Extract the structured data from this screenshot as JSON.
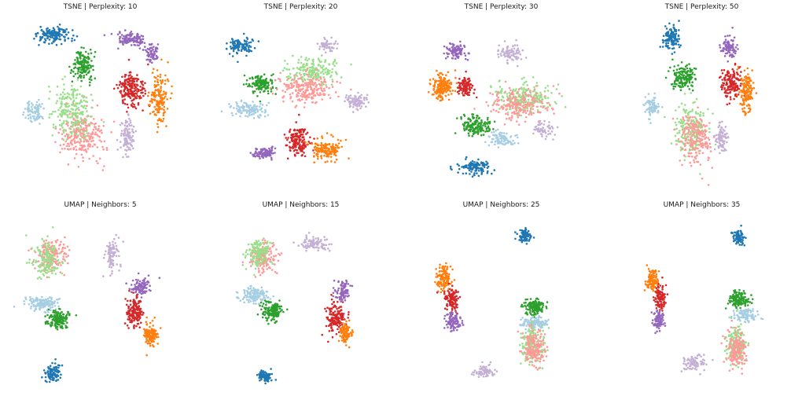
{
  "chart_data": [
    {
      "type": "scatter",
      "title": "TSNE | Perplexity: 10",
      "clusters": [
        {
          "color": "#1f77b4",
          "x": -2.4,
          "y": 3.5,
          "sx": 0.9,
          "sy": 0.45,
          "n": 150
        },
        {
          "color": "#9467bd",
          "x": 1.6,
          "y": 3.3,
          "sx": 0.7,
          "sy": 0.3,
          "n": 120
        },
        {
          "color": "#9467bd",
          "x": 2.6,
          "y": 2.6,
          "sx": 0.35,
          "sy": 0.45,
          "n": 70
        },
        {
          "color": "#d62728",
          "x": 1.6,
          "y": 0.8,
          "sx": 0.7,
          "sy": 0.9,
          "n": 200
        },
        {
          "color": "#ff7f0e",
          "x": 3.0,
          "y": 0.4,
          "sx": 0.45,
          "sy": 1.2,
          "n": 160
        },
        {
          "color": "#2ca02c",
          "x": -0.9,
          "y": 2.0,
          "sx": 0.5,
          "sy": 0.8,
          "n": 150
        },
        {
          "color": "#a6cee3",
          "x": -3.4,
          "y": -0.3,
          "sx": 0.45,
          "sy": 0.55,
          "n": 90
        },
        {
          "color": "#ff9896",
          "x": -1.0,
          "y": -1.4,
          "sx": 1.1,
          "sy": 1.3,
          "n": 260
        },
        {
          "color": "#98df8a",
          "x": -1.5,
          "y": -0.2,
          "sx": 1.0,
          "sy": 1.4,
          "n": 220
        },
        {
          "color": "#c5b0d5",
          "x": 1.4,
          "y": -1.6,
          "sx": 0.35,
          "sy": 1.1,
          "n": 110
        }
      ]
    },
    {
      "type": "scatter",
      "title": "TSNE | Perplexity: 20",
      "clusters": [
        {
          "color": "#1f77b4",
          "x": -3.2,
          "y": 3.0,
          "sx": 0.7,
          "sy": 0.4,
          "n": 110
        },
        {
          "color": "#2ca02c",
          "x": -2.0,
          "y": 1.1,
          "sx": 0.7,
          "sy": 0.45,
          "n": 140
        },
        {
          "color": "#a6cee3",
          "x": -2.8,
          "y": -0.2,
          "sx": 0.9,
          "sy": 0.35,
          "n": 110
        },
        {
          "color": "#98df8a",
          "x": 0.6,
          "y": 1.7,
          "sx": 1.2,
          "sy": 0.7,
          "n": 200
        },
        {
          "color": "#ff9896",
          "x": 0.3,
          "y": 0.8,
          "sx": 1.5,
          "sy": 0.7,
          "n": 220
        },
        {
          "color": "#c5b0d5",
          "x": 2.9,
          "y": 0.2,
          "sx": 0.6,
          "sy": 0.35,
          "n": 90
        },
        {
          "color": "#c5b0d5",
          "x": 1.4,
          "y": 3.0,
          "sx": 0.5,
          "sy": 0.3,
          "n": 50
        },
        {
          "color": "#d62728",
          "x": -0.2,
          "y": -1.8,
          "sx": 0.6,
          "sy": 0.7,
          "n": 170
        },
        {
          "color": "#9467bd",
          "x": -1.9,
          "y": -2.4,
          "sx": 0.6,
          "sy": 0.25,
          "n": 100
        },
        {
          "color": "#ff7f0e",
          "x": 1.3,
          "y": -2.2,
          "sx": 0.7,
          "sy": 0.5,
          "n": 150
        }
      ]
    },
    {
      "type": "scatter",
      "title": "TSNE | Perplexity: 30",
      "clusters": [
        {
          "color": "#9467bd",
          "x": -2.4,
          "y": 2.7,
          "sx": 0.5,
          "sy": 0.45,
          "n": 90
        },
        {
          "color": "#ff7f0e",
          "x": -3.1,
          "y": 0.9,
          "sx": 0.6,
          "sy": 0.6,
          "n": 160
        },
        {
          "color": "#d62728",
          "x": -1.9,
          "y": 0.9,
          "sx": 0.35,
          "sy": 0.55,
          "n": 90
        },
        {
          "color": "#c5b0d5",
          "x": 0.5,
          "y": 2.6,
          "sx": 0.6,
          "sy": 0.45,
          "n": 80
        },
        {
          "color": "#98df8a",
          "x": 1.2,
          "y": 0.4,
          "sx": 1.5,
          "sy": 0.8,
          "n": 220
        },
        {
          "color": "#ff9896",
          "x": 0.9,
          "y": 0.0,
          "sx": 1.5,
          "sy": 0.8,
          "n": 200
        },
        {
          "color": "#2ca02c",
          "x": -1.3,
          "y": -1.0,
          "sx": 0.8,
          "sy": 0.5,
          "n": 150
        },
        {
          "color": "#a6cee3",
          "x": 0.0,
          "y": -1.7,
          "sx": 0.7,
          "sy": 0.4,
          "n": 90
        },
        {
          "color": "#1f77b4",
          "x": -1.4,
          "y": -3.1,
          "sx": 0.8,
          "sy": 0.4,
          "n": 120
        },
        {
          "color": "#c5b0d5",
          "x": 2.2,
          "y": -1.2,
          "sx": 0.6,
          "sy": 0.4,
          "n": 60
        }
      ]
    },
    {
      "type": "scatter",
      "title": "TSNE | Perplexity: 50",
      "clusters": [
        {
          "color": "#1f77b4",
          "x": -1.6,
          "y": 3.4,
          "sx": 0.5,
          "sy": 0.6,
          "n": 120
        },
        {
          "color": "#2ca02c",
          "x": -1.0,
          "y": 1.4,
          "sx": 0.6,
          "sy": 0.6,
          "n": 150
        },
        {
          "color": "#a6cee3",
          "x": -2.6,
          "y": 0.0,
          "sx": 0.4,
          "sy": 0.5,
          "n": 80
        },
        {
          "color": "#9467bd",
          "x": 1.4,
          "y": 2.9,
          "sx": 0.45,
          "sy": 0.55,
          "n": 100
        },
        {
          "color": "#d62728",
          "x": 1.5,
          "y": 1.1,
          "sx": 0.5,
          "sy": 0.7,
          "n": 160
        },
        {
          "color": "#ff7f0e",
          "x": 2.3,
          "y": 0.6,
          "sx": 0.35,
          "sy": 1.1,
          "n": 140
        },
        {
          "color": "#98df8a",
          "x": -0.6,
          "y": -1.2,
          "sx": 0.9,
          "sy": 1.3,
          "n": 200
        },
        {
          "color": "#ff9896",
          "x": -0.3,
          "y": -1.6,
          "sx": 0.9,
          "sy": 1.3,
          "n": 200
        },
        {
          "color": "#c5b0d5",
          "x": 1.0,
          "y": -1.6,
          "sx": 0.3,
          "sy": 0.8,
          "n": 80
        }
      ]
    },
    {
      "type": "scatter",
      "title": "UMAP | Neighbors: 5",
      "clusters": [
        {
          "color": "#ff9896",
          "x": -2.6,
          "y": 2.4,
          "sx": 0.8,
          "sy": 0.8,
          "n": 160
        },
        {
          "color": "#98df8a",
          "x": -2.8,
          "y": 2.2,
          "sx": 0.7,
          "sy": 0.9,
          "n": 150
        },
        {
          "color": "#a6cee3",
          "x": -3.0,
          "y": 0.0,
          "sx": 0.9,
          "sy": 0.35,
          "n": 130
        },
        {
          "color": "#2ca02c",
          "x": -2.2,
          "y": -0.8,
          "sx": 0.6,
          "sy": 0.5,
          "n": 150
        },
        {
          "color": "#c5b0d5",
          "x": 0.6,
          "y": 2.4,
          "sx": 0.35,
          "sy": 0.8,
          "n": 90
        },
        {
          "color": "#9467bd",
          "x": 2.0,
          "y": 0.8,
          "sx": 0.55,
          "sy": 0.45,
          "n": 100
        },
        {
          "color": "#d62728",
          "x": 1.7,
          "y": -0.4,
          "sx": 0.45,
          "sy": 0.7,
          "n": 150
        },
        {
          "color": "#ff7f0e",
          "x": 2.6,
          "y": -1.6,
          "sx": 0.35,
          "sy": 0.6,
          "n": 110
        },
        {
          "color": "#1f77b4",
          "x": -2.5,
          "y": -3.5,
          "sx": 0.4,
          "sy": 0.45,
          "n": 100
        }
      ]
    },
    {
      "type": "scatter",
      "title": "UMAP | Neighbors: 15",
      "clusters": [
        {
          "color": "#ff9896",
          "x": -2.0,
          "y": 2.3,
          "sx": 0.7,
          "sy": 0.7,
          "n": 150
        },
        {
          "color": "#98df8a",
          "x": -2.2,
          "y": 2.5,
          "sx": 0.6,
          "sy": 0.7,
          "n": 140
        },
        {
          "color": "#a6cee3",
          "x": -2.4,
          "y": 0.4,
          "sx": 0.7,
          "sy": 0.4,
          "n": 130
        },
        {
          "color": "#2ca02c",
          "x": -1.5,
          "y": -0.4,
          "sx": 0.5,
          "sy": 0.5,
          "n": 150
        },
        {
          "color": "#c5b0d5",
          "x": 0.6,
          "y": 3.0,
          "sx": 0.7,
          "sy": 0.35,
          "n": 90
        },
        {
          "color": "#9467bd",
          "x": 2.1,
          "y": 0.6,
          "sx": 0.4,
          "sy": 0.5,
          "n": 90
        },
        {
          "color": "#d62728",
          "x": 1.8,
          "y": -0.7,
          "sx": 0.5,
          "sy": 0.7,
          "n": 150
        },
        {
          "color": "#ff7f0e",
          "x": 2.3,
          "y": -1.5,
          "sx": 0.3,
          "sy": 0.5,
          "n": 90
        },
        {
          "color": "#1f77b4",
          "x": -1.9,
          "y": -3.7,
          "sx": 0.4,
          "sy": 0.3,
          "n": 90
        }
      ]
    },
    {
      "type": "scatter",
      "title": "UMAP | Neighbors: 25",
      "clusters": [
        {
          "color": "#1f77b4",
          "x": 1.2,
          "y": 3.4,
          "sx": 0.35,
          "sy": 0.3,
          "n": 80
        },
        {
          "color": "#ff7f0e",
          "x": -3.0,
          "y": 1.3,
          "sx": 0.4,
          "sy": 0.6,
          "n": 130
        },
        {
          "color": "#d62728",
          "x": -2.6,
          "y": 0.2,
          "sx": 0.35,
          "sy": 0.6,
          "n": 110
        },
        {
          "color": "#9467bd",
          "x": -2.5,
          "y": -0.9,
          "sx": 0.4,
          "sy": 0.5,
          "n": 100
        },
        {
          "color": "#2ca02c",
          "x": 1.7,
          "y": -0.2,
          "sx": 0.5,
          "sy": 0.35,
          "n": 140
        },
        {
          "color": "#a6cee3",
          "x": 1.7,
          "y": -1.0,
          "sx": 0.7,
          "sy": 0.3,
          "n": 120
        },
        {
          "color": "#98df8a",
          "x": 1.6,
          "y": -2.1,
          "sx": 0.6,
          "sy": 0.9,
          "n": 160
        },
        {
          "color": "#ff9896",
          "x": 1.7,
          "y": -2.3,
          "sx": 0.6,
          "sy": 0.9,
          "n": 160
        },
        {
          "color": "#c5b0d5",
          "x": -0.9,
          "y": -3.4,
          "sx": 0.6,
          "sy": 0.3,
          "n": 80
        }
      ]
    },
    {
      "type": "scatter",
      "title": "UMAP | Neighbors: 35",
      "clusters": [
        {
          "color": "#1f77b4",
          "x": 1.9,
          "y": 3.3,
          "sx": 0.3,
          "sy": 0.35,
          "n": 80
        },
        {
          "color": "#ff7f0e",
          "x": -2.6,
          "y": 1.2,
          "sx": 0.3,
          "sy": 0.6,
          "n": 110
        },
        {
          "color": "#d62728",
          "x": -2.2,
          "y": 0.3,
          "sx": 0.3,
          "sy": 0.6,
          "n": 100
        },
        {
          "color": "#9467bd",
          "x": -2.3,
          "y": -0.8,
          "sx": 0.3,
          "sy": 0.5,
          "n": 90
        },
        {
          "color": "#2ca02c",
          "x": 1.9,
          "y": 0.2,
          "sx": 0.55,
          "sy": 0.4,
          "n": 140
        },
        {
          "color": "#a6cee3",
          "x": 2.2,
          "y": -0.6,
          "sx": 0.7,
          "sy": 0.3,
          "n": 110
        },
        {
          "color": "#98df8a",
          "x": 1.8,
          "y": -2.1,
          "sx": 0.5,
          "sy": 0.9,
          "n": 160
        },
        {
          "color": "#ff9896",
          "x": 1.8,
          "y": -2.3,
          "sx": 0.5,
          "sy": 0.9,
          "n": 160
        },
        {
          "color": "#c5b0d5",
          "x": -0.4,
          "y": -3.0,
          "sx": 0.6,
          "sy": 0.35,
          "n": 80
        }
      ]
    }
  ]
}
